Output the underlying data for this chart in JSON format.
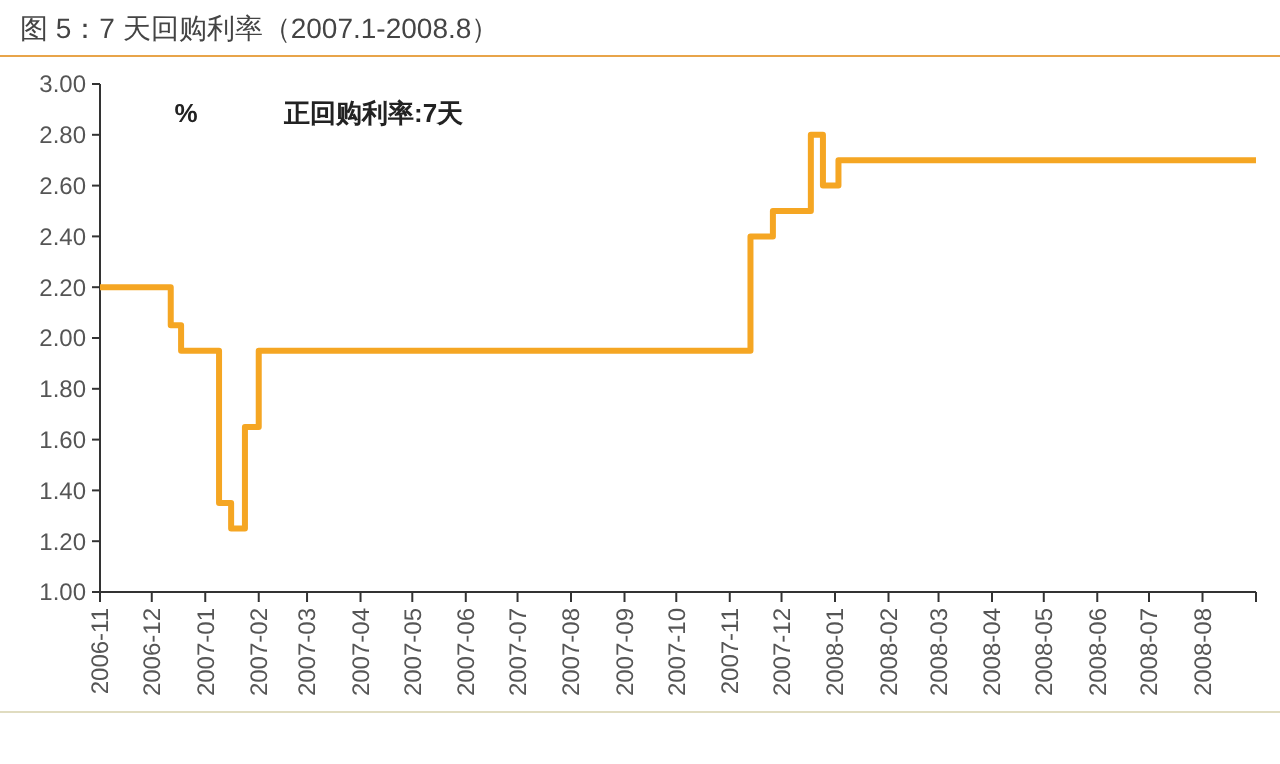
{
  "chart_data": {
    "type": "step",
    "title": "图 5：7 天回购利率（2007.1-2008.8）",
    "ylabel": "%",
    "annotations": [
      "正回购利率:7天"
    ],
    "series": [
      {
        "color": "#f5a623",
        "x": [
          "2006-11-01",
          "2006-12-12",
          "2006-12-18",
          "2007-01-09",
          "2007-01-16",
          "2007-01-24",
          "2007-02-01",
          "2007-11-13",
          "2007-11-26",
          "2007-12-18",
          "2007-12-25",
          "2008-01-03",
          "2008-09-01"
        ],
        "values": [
          2.2,
          2.05,
          1.95,
          1.35,
          1.25,
          1.65,
          1.95,
          2.4,
          2.5,
          2.8,
          2.6,
          2.7,
          2.7
        ]
      }
    ],
    "xlim": [
      "2006-11-01",
      "2008-09-01"
    ],
    "xticks": [
      "2006-11",
      "2006-12",
      "2007-01",
      "2007-02",
      "2007-03",
      "2007-04",
      "2007-05",
      "2007-06",
      "2007-07",
      "2007-08",
      "2007-09",
      "2007-10",
      "2007-11",
      "2007-12",
      "2008-01",
      "2008-02",
      "2008-03",
      "2008-04",
      "2008-05",
      "2008-06",
      "2008-07",
      "2008-08"
    ],
    "ylim": [
      1,
      3
    ],
    "yticks": [
      {
        "value": 1,
        "label": "1.00"
      },
      {
        "value": 1.2,
        "label": "1.20"
      },
      {
        "value": 1.4,
        "label": "1.40"
      },
      {
        "value": 1.6,
        "label": "1.60"
      },
      {
        "value": 1.8,
        "label": "1.80"
      },
      {
        "value": 2,
        "label": "2.00"
      },
      {
        "value": 2.2,
        "label": "2.20"
      },
      {
        "value": 2.4,
        "label": "2.40"
      },
      {
        "value": 2.6,
        "label": "2.60"
      },
      {
        "value": 2.8,
        "label": "2.80"
      },
      {
        "value": 3,
        "label": "3.00"
      }
    ],
    "grid": false
  }
}
